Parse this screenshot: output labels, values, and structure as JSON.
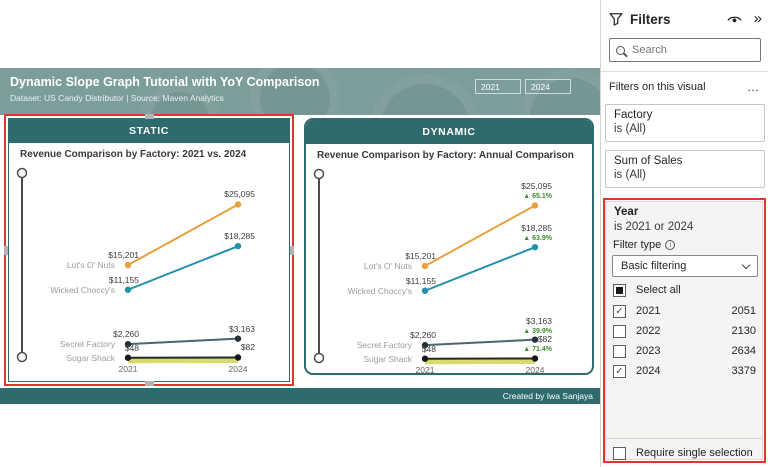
{
  "colors": {
    "highlight_red": "#E0352C",
    "header_teal": "#2F6B6C",
    "banner_teal": "#7C9E9B",
    "delta_green": "#3E8E2F"
  },
  "banner": {
    "title": "Dynamic Slope Graph Tutorial with YoY Comparison",
    "subtitle": "Dataset: US Candy Distributor | Source: Maven Analytics",
    "year_start": "2021",
    "year_end": "2024"
  },
  "footer": {
    "credit": "Created by Iwa Sanjaya"
  },
  "chart_data": [
    {
      "type": "line",
      "variant": "slope",
      "card_header": "STATIC",
      "title": "Revenue Comparison by Factory: 2021 vs. 2024",
      "categories": [
        "2021",
        "2024"
      ],
      "ylim": [
        0,
        25500
      ],
      "show_deltas": false,
      "series": [
        {
          "name": "Lot's O' Nuts",
          "values": [
            15201,
            25095
          ],
          "labels": [
            "$15,201",
            "$25,095"
          ],
          "color": "#E8A13C"
        },
        {
          "name": "Wicked Choccy's",
          "values": [
            11155,
            18285
          ],
          "labels": [
            "$11,155",
            "$18,285"
          ],
          "color": "#2191AC"
        },
        {
          "name": "Secret Factory",
          "values": [
            2260,
            3163
          ],
          "labels": [
            "$2,260",
            "$3,163"
          ],
          "color": "#4A6672",
          "dot_color": "#20313A"
        },
        {
          "name": "Sugar Shack",
          "values": [
            48,
            82
          ],
          "labels": [
            "$48",
            "$82"
          ],
          "color": "#20292C",
          "dot_color": "#16191A",
          "glow_color": "#D8DB6A"
        }
      ]
    },
    {
      "type": "line",
      "variant": "slope",
      "card_header": "DYNAMIC",
      "title": "Revenue Comparison by Factory: Annual Comparison",
      "categories": [
        "2021",
        "2024"
      ],
      "ylim": [
        0,
        25500
      ],
      "show_deltas": true,
      "delta_symbol": "▲",
      "delta_color": "#3E8E2F",
      "series": [
        {
          "name": "Lot's O' Nuts",
          "values": [
            15201,
            25095
          ],
          "labels": [
            "$15,201",
            "$25,095"
          ],
          "delta": "65.1%",
          "color": "#E8A13C"
        },
        {
          "name": "Wicked Choccy's",
          "values": [
            11155,
            18285
          ],
          "labels": [
            "$11,155",
            "$18,285"
          ],
          "delta": "63.9%",
          "color": "#2191AC"
        },
        {
          "name": "Secret Factory",
          "values": [
            2260,
            3163
          ],
          "labels": [
            "$2,260",
            "$3,163"
          ],
          "delta": "39.9%",
          "color": "#4A6672",
          "dot_color": "#20313A"
        },
        {
          "name": "Sugar Shack",
          "values": [
            48,
            82
          ],
          "labels": [
            "$48",
            "$82"
          ],
          "delta": "71.4%",
          "color": "#20292C",
          "dot_color": "#16191A",
          "glow_color": "#D8DB6A"
        }
      ]
    }
  ],
  "filters_pane": {
    "title": "Filters",
    "collapse_glyph": "»",
    "search_placeholder": "Search",
    "section_title": "Filters on this visual",
    "more_label": "…",
    "cards": [
      {
        "field": "Factory",
        "condition": "is (All)"
      },
      {
        "field": "Sum of Sales",
        "condition": "is (All)"
      }
    ],
    "year_card": {
      "field": "Year",
      "condition": "is 2021 or 2024",
      "filter_type_label": "Filter type",
      "filter_type_value": "Basic filtering",
      "select_all_label": "Select all",
      "options": [
        {
          "label": "2021",
          "count": "2051",
          "checked": true
        },
        {
          "label": "2022",
          "count": "2130",
          "checked": false
        },
        {
          "label": "2023",
          "count": "2634",
          "checked": false
        },
        {
          "label": "2024",
          "count": "3379",
          "checked": true
        }
      ],
      "require_single_label": "Require single selection"
    }
  }
}
